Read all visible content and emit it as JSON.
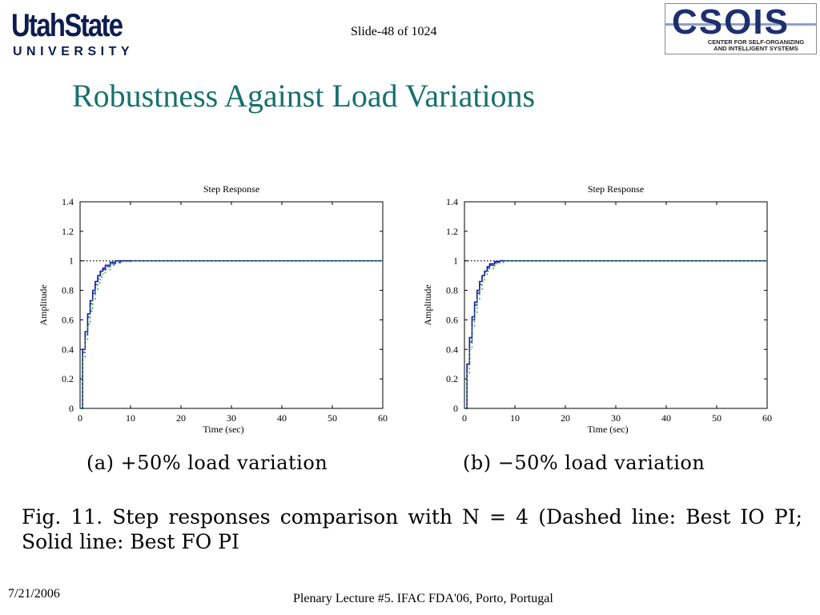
{
  "header": {
    "logo_left": {
      "line1": "UtahState",
      "line2": "UNIVERSITY"
    },
    "slide_number": "Slide-48 of 1024",
    "logo_right": {
      "word": "CSOIS",
      "subtitle_line1": "CENTER FOR SELF-ORGANIZING",
      "subtitle_line2": "AND INTELLIGENT SYSTEMS"
    }
  },
  "title": "Robustness Against Load Variations",
  "chart_data": [
    {
      "type": "line",
      "title": "Step Response",
      "xlabel": "Time (sec)",
      "ylabel": "Amplitude",
      "xlim": [
        0,
        60
      ],
      "ylim": [
        0,
        1.4
      ],
      "xticks": [
        0,
        10,
        20,
        30,
        40,
        50,
        60
      ],
      "yticks": [
        "0",
        "0.2",
        "0.4",
        "0.6",
        "0.8",
        "1",
        "1.2",
        "1.4"
      ],
      "reference_line": {
        "y": 1,
        "style": "dotted",
        "x_end": 8
      },
      "series": [
        {
          "style": "dashed",
          "color": "#1f3fd0",
          "x": [
            0,
            0.5,
            1,
            1.5,
            2,
            2.5,
            3,
            3.5,
            4,
            4.5,
            5,
            6,
            7,
            8,
            10,
            20,
            30,
            60
          ],
          "y": [
            0,
            0.38,
            0.5,
            0.62,
            0.71,
            0.78,
            0.84,
            0.88,
            0.92,
            0.94,
            0.96,
            0.98,
            0.99,
            1.0,
            1.0,
            1.0,
            1.0,
            1.0
          ]
        },
        {
          "style": "solid",
          "color": "#1a1a9c",
          "x": [
            0,
            0.5,
            1,
            1.5,
            2,
            2.5,
            3,
            3.5,
            4,
            4.5,
            5,
            6,
            7,
            8,
            10,
            20,
            30,
            60
          ],
          "y": [
            0,
            0.4,
            0.52,
            0.64,
            0.73,
            0.8,
            0.86,
            0.9,
            0.93,
            0.95,
            0.97,
            0.99,
            1.0,
            1.0,
            1.0,
            1.0,
            1.0,
            1.0
          ]
        },
        {
          "style": "dotted",
          "color": "#22a822",
          "x": [
            0,
            0.5,
            1,
            1.5,
            2,
            2.5,
            3,
            3.5,
            4,
            4.5,
            5,
            6,
            7,
            8,
            10,
            20,
            30,
            60
          ],
          "y": [
            0,
            0.34,
            0.46,
            0.57,
            0.66,
            0.74,
            0.8,
            0.85,
            0.89,
            0.92,
            0.94,
            0.97,
            0.985,
            0.995,
            1.0,
            1.0,
            1.0,
            1.0
          ]
        }
      ],
      "caption": "(a)  +50%  load variation"
    },
    {
      "type": "line",
      "title": "Step Response",
      "xlabel": "Time (sec)",
      "ylabel": "Amplitude",
      "xlim": [
        0,
        60
      ],
      "ylim": [
        0,
        1.4
      ],
      "xticks": [
        0,
        10,
        20,
        30,
        40,
        50,
        60
      ],
      "yticks": [
        "0",
        "0.2",
        "0.4",
        "0.6",
        "0.8",
        "1",
        "1.2",
        "1.4"
      ],
      "reference_line": {
        "y": 1,
        "style": "dotted",
        "x_end": 8
      },
      "series": [
        {
          "style": "dashed",
          "color": "#1f3fd0",
          "x": [
            0,
            0.5,
            1,
            1.5,
            2,
            2.5,
            3,
            3.5,
            4,
            4.5,
            5,
            6,
            7,
            8,
            10,
            20,
            30,
            60
          ],
          "y": [
            0,
            0.28,
            0.45,
            0.6,
            0.7,
            0.78,
            0.84,
            0.89,
            0.92,
            0.95,
            0.97,
            0.99,
            1.0,
            1.0,
            1.0,
            1.0,
            1.0,
            1.0
          ]
        },
        {
          "style": "solid",
          "color": "#1a1a9c",
          "x": [
            0,
            0.5,
            1,
            1.5,
            2,
            2.5,
            3,
            3.5,
            4,
            4.5,
            5,
            6,
            7,
            8,
            10,
            20,
            30,
            60
          ],
          "y": [
            0,
            0.3,
            0.48,
            0.62,
            0.72,
            0.8,
            0.86,
            0.9,
            0.93,
            0.96,
            0.98,
            0.995,
            1.0,
            1.0,
            1.0,
            1.0,
            1.0,
            1.0
          ]
        },
        {
          "style": "dotted",
          "color": "#22a822",
          "x": [
            0,
            0.5,
            1,
            1.5,
            2,
            2.5,
            3,
            3.5,
            4,
            4.5,
            5,
            6,
            7,
            8,
            10,
            20,
            30,
            60
          ],
          "y": [
            0,
            0.24,
            0.4,
            0.55,
            0.65,
            0.74,
            0.8,
            0.86,
            0.9,
            0.93,
            0.95,
            0.98,
            0.99,
            1.0,
            1.0,
            1.0,
            1.0,
            1.0
          ]
        }
      ],
      "caption": "(b)  −50%  load variation"
    }
  ],
  "figure_caption": "Fig. 11.    Step responses comparison with  N = 4  (Dashed line: Best IO PI; Solid line: Best FO PI",
  "footer": {
    "date": "7/21/2006",
    "text": "Plenary Lecture #5. IFAC FDA'06, Porto, Portugal"
  }
}
